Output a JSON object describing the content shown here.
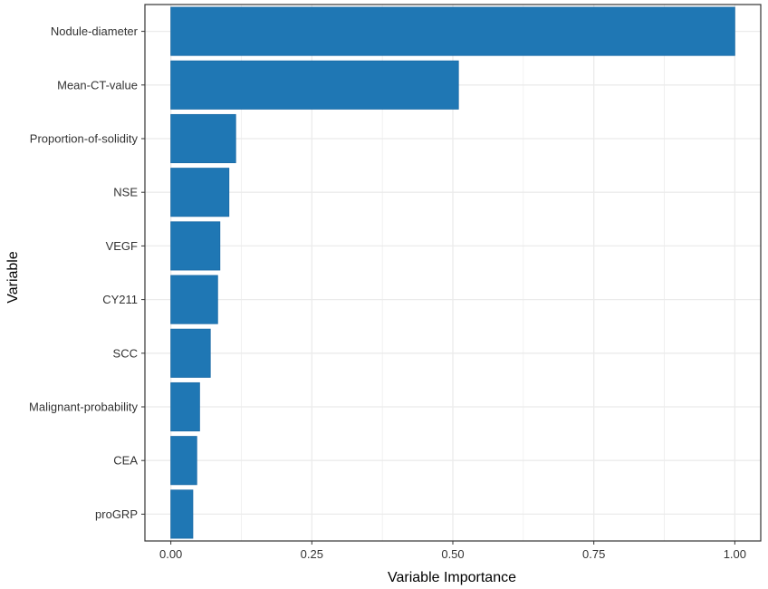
{
  "chart_data": {
    "type": "bar",
    "orientation": "horizontal",
    "categories": [
      "Nodule-diameter",
      "Mean-CT-value",
      "Proportion-of-solidity",
      "NSE",
      "VEGF",
      "CY211",
      "SCC",
      "Malignant-probability",
      "CEA",
      "proGRP"
    ],
    "values": [
      1.0,
      0.51,
      0.115,
      0.103,
      0.087,
      0.083,
      0.07,
      0.051,
      0.046,
      0.039
    ],
    "xlabel": "Variable Importance",
    "ylabel": "Variable",
    "xlim": [
      -0.046,
      1.046
    ],
    "xticks": [
      0.0,
      0.25,
      0.5,
      0.75,
      1.0
    ],
    "xtick_labels": [
      "0.00",
      "0.25",
      "0.50",
      "0.75",
      "1.00"
    ],
    "grid": true,
    "bar_color": "#1F77B4",
    "bar_edge_color": "#1A6AA6",
    "grid_color": "#EBEBEB",
    "panel_border_color": "#333333"
  }
}
